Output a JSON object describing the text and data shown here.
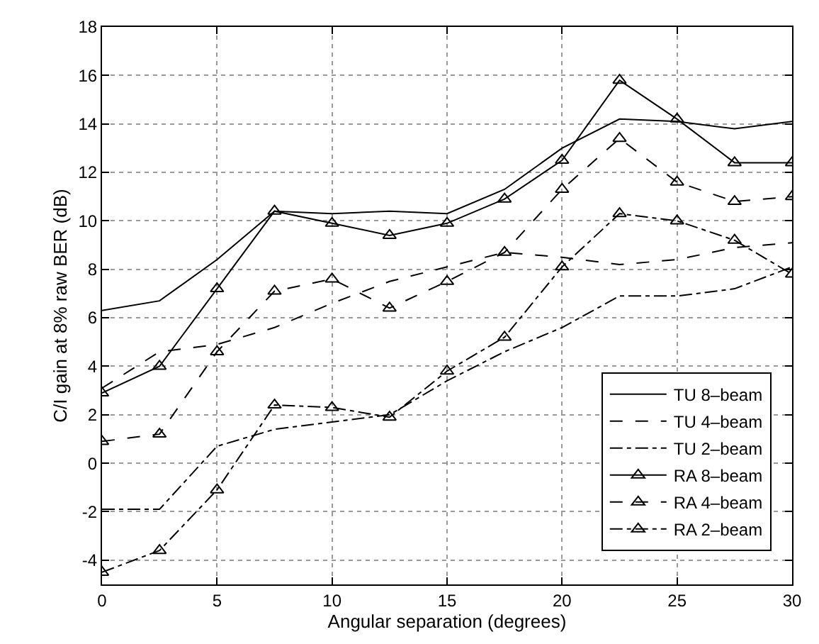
{
  "chart_data": {
    "type": "line",
    "xlabel": "Angular separation (degrees)",
    "ylabel": "C/I gain at 8% raw BER (dB)",
    "x": [
      0,
      2.5,
      5,
      7.5,
      10,
      12.5,
      15,
      17.5,
      20,
      22.5,
      25,
      27.5,
      30
    ],
    "xlim": [
      0,
      30
    ],
    "xticks": [
      0,
      5,
      10,
      15,
      20,
      25,
      30
    ],
    "ylim": [
      -5,
      18
    ],
    "yticks": [
      -4,
      -2,
      0,
      2,
      4,
      6,
      8,
      10,
      12,
      14,
      16,
      18
    ],
    "grid": true,
    "legend": "bottom right",
    "series": [
      {
        "name": "TU 8–beam",
        "color": "#000000",
        "line_style": "solid",
        "marker": "none",
        "values": [
          6.3,
          6.7,
          8.4,
          10.4,
          10.3,
          10.4,
          10.3,
          11.3,
          13.0,
          14.2,
          14.1,
          13.8,
          14.1
        ]
      },
      {
        "name": "TU 4–beam",
        "color": "#000000",
        "line_style": "dashed",
        "marker": "none",
        "values": [
          3.1,
          4.6,
          4.9,
          5.6,
          6.6,
          7.5,
          8.1,
          8.7,
          8.5,
          8.2,
          8.4,
          8.9,
          9.1
        ]
      },
      {
        "name": "TU 2–beam",
        "color": "#000000",
        "line_style": "dashdot",
        "marker": "none",
        "values": [
          -1.9,
          -1.9,
          0.7,
          1.4,
          1.7,
          2.0,
          3.4,
          4.6,
          5.6,
          6.9,
          6.9,
          7.2,
          8.1
        ]
      },
      {
        "name": "RA 8–beam",
        "color": "#000000",
        "line_style": "solid",
        "marker": "triangle",
        "values": [
          2.9,
          4.0,
          7.2,
          10.4,
          9.9,
          9.4,
          9.9,
          10.9,
          12.5,
          15.8,
          14.2,
          12.4,
          12.4
        ]
      },
      {
        "name": "RA 4–beam",
        "color": "#000000",
        "line_style": "dashed",
        "marker": "triangle",
        "values": [
          0.9,
          1.2,
          4.6,
          7.1,
          7.6,
          6.4,
          7.5,
          8.7,
          11.3,
          13.4,
          11.6,
          10.8,
          11.0
        ]
      },
      {
        "name": "RA 2–beam",
        "color": "#000000",
        "line_style": "dashdot",
        "marker": "triangle",
        "values": [
          -4.5,
          -3.6,
          -1.1,
          2.4,
          2.3,
          1.9,
          3.8,
          5.2,
          8.1,
          10.3,
          10.0,
          9.2,
          7.8
        ]
      }
    ]
  }
}
